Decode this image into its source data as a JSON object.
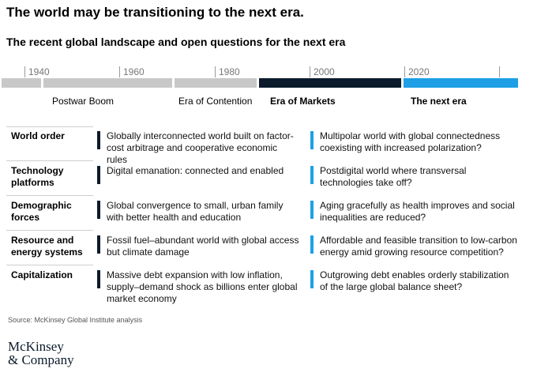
{
  "header": {
    "title": "The world may be transitioning to the next era.",
    "subtitle": "The recent global landscape and open questions for the next era"
  },
  "timeline": {
    "ticks": [
      "1940",
      "1960",
      "1980",
      "2000",
      "2020"
    ],
    "eras": [
      {
        "label": "Postwar Boom",
        "color": "#c8c8c8"
      },
      {
        "label": "Era of Contention",
        "color": "#c8c8c8"
      },
      {
        "label": "Era of Markets",
        "color": "#0b1b2b"
      },
      {
        "label": "The next era",
        "color": "#1e9fe6"
      }
    ]
  },
  "rows": [
    {
      "label": "World order",
      "current": "Globally interconnected world built on factor-cost arbitrage and cooperative economic rules",
      "next": "Multipolar world with global connectedness coexisting with increased polarization?"
    },
    {
      "label": "Technology platforms",
      "current": "Digital emanation: connected and enabled",
      "next": "Postdigital world where transversal technologies take off?"
    },
    {
      "label": "Demographic forces",
      "current": "Global convergence to small, urban family with better health and education",
      "next": "Aging gracefully as health improves and social inequalities are reduced?"
    },
    {
      "label": "Resource and energy systems",
      "current": "Fossil fuel–abundant world with global access but climate damage",
      "next": "Affordable and feasible transition to low-carbon energy amid growing resource competition?"
    },
    {
      "label": "Capitalization",
      "current": "Massive debt expansion with low inflation, supply–demand shock as billions enter global market economy",
      "next": "Outgrowing debt enables orderly stabilization of the large global balance sheet?"
    }
  ],
  "footer": {
    "source": "Source: McKinsey Global Institute analysis",
    "logo_line1": "McKinsey",
    "logo_line2": "& Company"
  },
  "colors": {
    "dark": "#0b1b2b",
    "blue": "#1e9fe6",
    "gray": "#c8c8c8"
  }
}
